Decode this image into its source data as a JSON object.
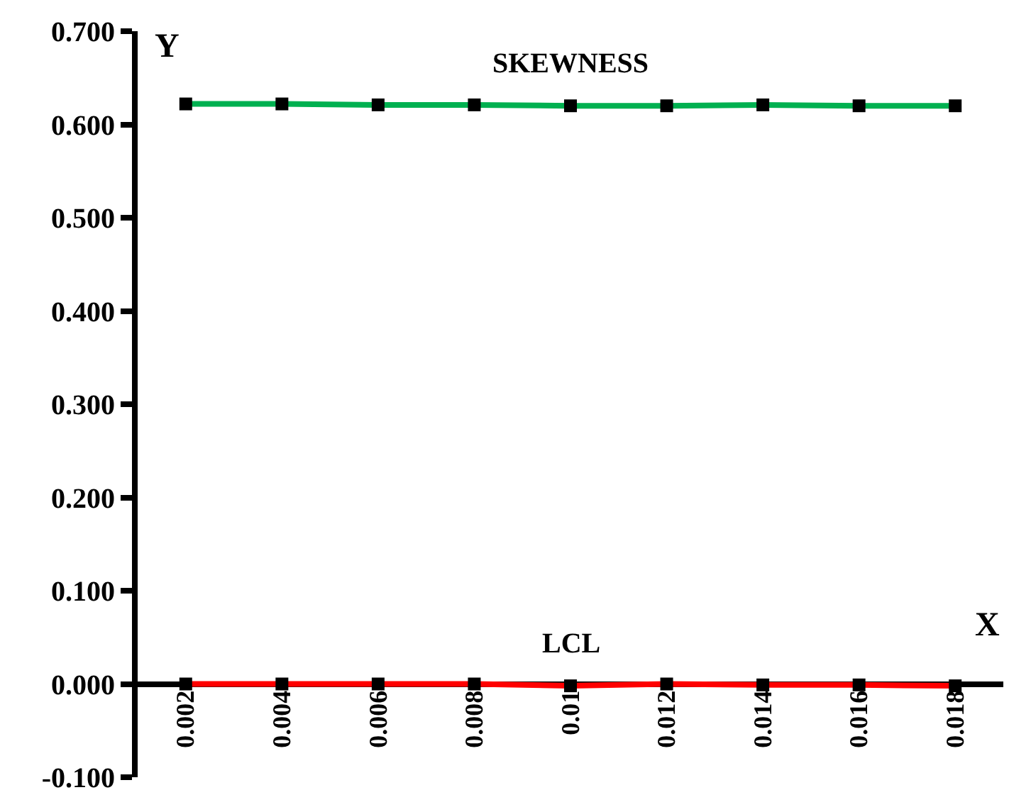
{
  "chart_data": {
    "type": "line",
    "xlabel": "X",
    "ylabel": "Y",
    "categories": [
      "0.002",
      "0.004",
      "0.006",
      "0.008",
      "0.01",
      "0.012",
      "0.014",
      "0.016",
      "0.018"
    ],
    "series": [
      {
        "name": "SKEWNESS",
        "color": "#00b050",
        "values": [
          0.622,
          0.622,
          0.621,
          0.621,
          0.62,
          0.62,
          0.621,
          0.62,
          0.62
        ]
      },
      {
        "name": "LCL",
        "color": "#ff0000",
        "values": [
          0.0,
          0.0,
          0.0,
          0.0,
          -0.002,
          0.0,
          -0.001,
          -0.001,
          -0.002
        ]
      }
    ],
    "ylim": [
      -0.1,
      0.7
    ],
    "yticks": [
      {
        "value": -0.1,
        "label": "-0.100"
      },
      {
        "value": 0,
        "label": "0.000"
      },
      {
        "value": 0.1,
        "label": "0.100"
      },
      {
        "value": 0.2,
        "label": "0.200"
      },
      {
        "value": 0.3,
        "label": "0.300"
      },
      {
        "value": 0.4,
        "label": "0.400"
      },
      {
        "value": 0.5,
        "label": "0.500"
      },
      {
        "value": 0.6,
        "label": "0.600"
      },
      {
        "value": 0.7,
        "label": "0.700"
      }
    ],
    "grid": false,
    "legend": false,
    "marker": "square",
    "line_style": "solid"
  }
}
